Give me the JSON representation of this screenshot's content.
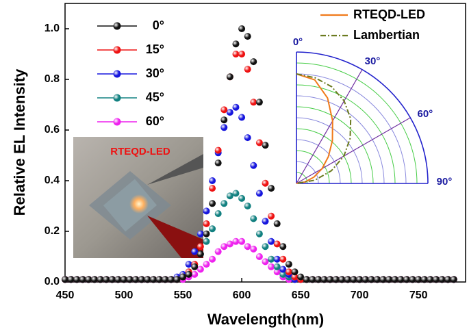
{
  "chart_data": [
    {
      "type": "line",
      "xlabel": "Wavelength(nm)",
      "ylabel": "Relative EL Intensity",
      "annotations": [
        "RTEQD-LED"
      ],
      "x": [
        450,
        455,
        460,
        465,
        470,
        475,
        480,
        485,
        490,
        495,
        500,
        505,
        510,
        515,
        520,
        525,
        530,
        535,
        540,
        545,
        550,
        555,
        560,
        565,
        570,
        575,
        580,
        585,
        590,
        595,
        600,
        605,
        610,
        615,
        620,
        625,
        630,
        635,
        640,
        645,
        650,
        655,
        660,
        665,
        670,
        675,
        680,
        685,
        690,
        695,
        700,
        705,
        710,
        715,
        720,
        725,
        730,
        735,
        740,
        745,
        750,
        755,
        760,
        765,
        770,
        775,
        780
      ],
      "xlim": [
        450,
        790
      ],
      "xticks": [
        450,
        500,
        550,
        600,
        650,
        700,
        750
      ],
      "ylim": [
        0,
        1.1
      ],
      "yticks": [
        {
          "value": 0,
          "label": "0.0"
        },
        0.2,
        0.4,
        0.6,
        0.8,
        {
          "value": 1,
          "label": "1.0"
        }
      ],
      "markers": true,
      "series": [
        {
          "name": "0°",
          "color": "#111111",
          "values": [
            0.01,
            0.01,
            0.01,
            0.01,
            0.01,
            0.01,
            0.01,
            0.01,
            0.01,
            0.01,
            0.01,
            0.01,
            0.01,
            0.01,
            0.01,
            0.01,
            0.01,
            0.01,
            0.01,
            0.01,
            0.02,
            0.03,
            0.06,
            0.11,
            0.19,
            0.31,
            0.47,
            0.64,
            0.81,
            0.94,
            1.0,
            0.97,
            0.87,
            0.71,
            0.54,
            0.37,
            0.23,
            0.14,
            0.07,
            0.04,
            0.02,
            0.01,
            0.01,
            0.01,
            0.01,
            0.01,
            0.01,
            0.01,
            0.01,
            0.01,
            0.01,
            0.01,
            0.01,
            0.01,
            0.01,
            0.01,
            0.01,
            0.01,
            0.01,
            0.01,
            0.01,
            0.01,
            0.01,
            0.01,
            0.01,
            0.01,
            0.01
          ]
        },
        {
          "name": "15°",
          "color": "#ee1111",
          "values": [
            0.01,
            0.01,
            0.01,
            0.01,
            0.01,
            0.01,
            0.01,
            0.01,
            0.01,
            0.01,
            0.01,
            0.01,
            0.01,
            0.01,
            0.01,
            0.01,
            0.01,
            0.01,
            0.01,
            0.01,
            0.02,
            0.04,
            0.07,
            0.14,
            0.23,
            0.37,
            0.52,
            0.68,
            0.81,
            0.9,
            0.9,
            0.84,
            0.71,
            0.55,
            0.39,
            0.26,
            0.15,
            0.09,
            0.04,
            0.02,
            0.01,
            0.01,
            0.01,
            0.01,
            0.01,
            0.01,
            0.01,
            0.01,
            0.01,
            0.01,
            0.01,
            0.01,
            0.01,
            0.01,
            0.01,
            0.01,
            0.01,
            0.01,
            0.01,
            0.01,
            0.01,
            0.01,
            0.01,
            0.01,
            0.01,
            0.01,
            0.01
          ]
        },
        {
          "name": "30°",
          "color": "#1515dd",
          "values": [
            0.01,
            0.01,
            0.01,
            0.01,
            0.01,
            0.01,
            0.01,
            0.01,
            0.01,
            0.01,
            0.01,
            0.01,
            0.01,
            0.01,
            0.01,
            0.01,
            0.01,
            0.01,
            0.01,
            0.02,
            0.03,
            0.07,
            0.12,
            0.19,
            0.28,
            0.4,
            0.51,
            0.61,
            0.67,
            0.69,
            0.65,
            0.57,
            0.46,
            0.35,
            0.24,
            0.16,
            0.09,
            0.05,
            0.03,
            0.01,
            0.01,
            0.01,
            0.01,
            0.01,
            0.01,
            0.01,
            0.01,
            0.01,
            0.01,
            0.01,
            0.01,
            0.01,
            0.01,
            0.01,
            0.01,
            0.01,
            0.01,
            0.01,
            0.01,
            0.01,
            0.01,
            0.01,
            0.01,
            0.01,
            0.01,
            0.01,
            0.01
          ]
        },
        {
          "name": "45°",
          "color": "#118080",
          "values": [
            0.01,
            0.01,
            0.01,
            0.01,
            0.01,
            0.01,
            0.01,
            0.01,
            0.01,
            0.01,
            0.01,
            0.01,
            0.01,
            0.01,
            0.01,
            0.01,
            0.01,
            0.01,
            0.01,
            0.01,
            0.02,
            0.04,
            0.07,
            0.11,
            0.16,
            0.21,
            0.27,
            0.31,
            0.34,
            0.35,
            0.33,
            0.3,
            0.25,
            0.19,
            0.14,
            0.09,
            0.06,
            0.03,
            0.02,
            0.01,
            0.01,
            0.01,
            0.01,
            0.01,
            0.01,
            0.01,
            0.01,
            0.01,
            0.01,
            0.01,
            0.01,
            0.01,
            0.01,
            0.01,
            0.01,
            0.01,
            0.01,
            0.01,
            0.01,
            0.01,
            0.01,
            0.01,
            0.01,
            0.01,
            0.01,
            0.01,
            0.01
          ]
        },
        {
          "name": "60°",
          "color": "#ee22ee",
          "values": [
            0.01,
            0.01,
            0.01,
            0.01,
            0.01,
            0.01,
            0.01,
            0.01,
            0.01,
            0.01,
            0.01,
            0.01,
            0.01,
            0.01,
            0.01,
            0.01,
            0.01,
            0.01,
            0.01,
            0.01,
            0.01,
            0.02,
            0.03,
            0.05,
            0.07,
            0.09,
            0.12,
            0.14,
            0.15,
            0.16,
            0.16,
            0.14,
            0.13,
            0.1,
            0.08,
            0.06,
            0.04,
            0.02,
            0.01,
            0.01,
            0.01,
            0.01,
            0.01,
            0.01,
            0.01,
            0.01,
            0.01,
            0.01,
            0.01,
            0.01,
            0.01,
            0.01,
            0.01,
            0.01,
            0.01,
            0.01,
            0.01,
            0.01,
            0.01,
            0.01,
            0.01,
            0.01,
            0.01,
            0.01,
            0.01,
            0.01,
            0.01
          ]
        }
      ]
    },
    {
      "type": "polar",
      "theta": [
        0,
        10,
        20,
        30,
        40,
        50,
        60,
        70,
        80,
        90
      ],
      "rlim": [
        0,
        1.2
      ],
      "rticks": [
        0.1,
        0.2,
        0.3,
        0.4,
        0.5,
        0.6,
        0.7,
        0.8,
        0.9,
        1.0,
        1.1,
        1.2
      ],
      "thetaticks": [
        {
          "value": 0,
          "label": "0°"
        },
        {
          "value": 30,
          "label": "30°"
        },
        {
          "value": 60,
          "label": "60°"
        },
        {
          "value": 90,
          "label": "90°"
        }
      ],
      "series": [
        {
          "name": "RTEQD-LED",
          "color": "#f07a1a",
          "style": "solid",
          "values": [
            1.0,
            0.96,
            0.83,
            0.66,
            0.51,
            0.38,
            0.27,
            0.17,
            0.08,
            0
          ]
        },
        {
          "name": "Lambertian",
          "color": "#6b7a1f",
          "style": "dashdot",
          "values": [
            1.0,
            0.98,
            0.94,
            0.87,
            0.77,
            0.64,
            0.5,
            0.34,
            0.17,
            0
          ]
        }
      ]
    }
  ]
}
